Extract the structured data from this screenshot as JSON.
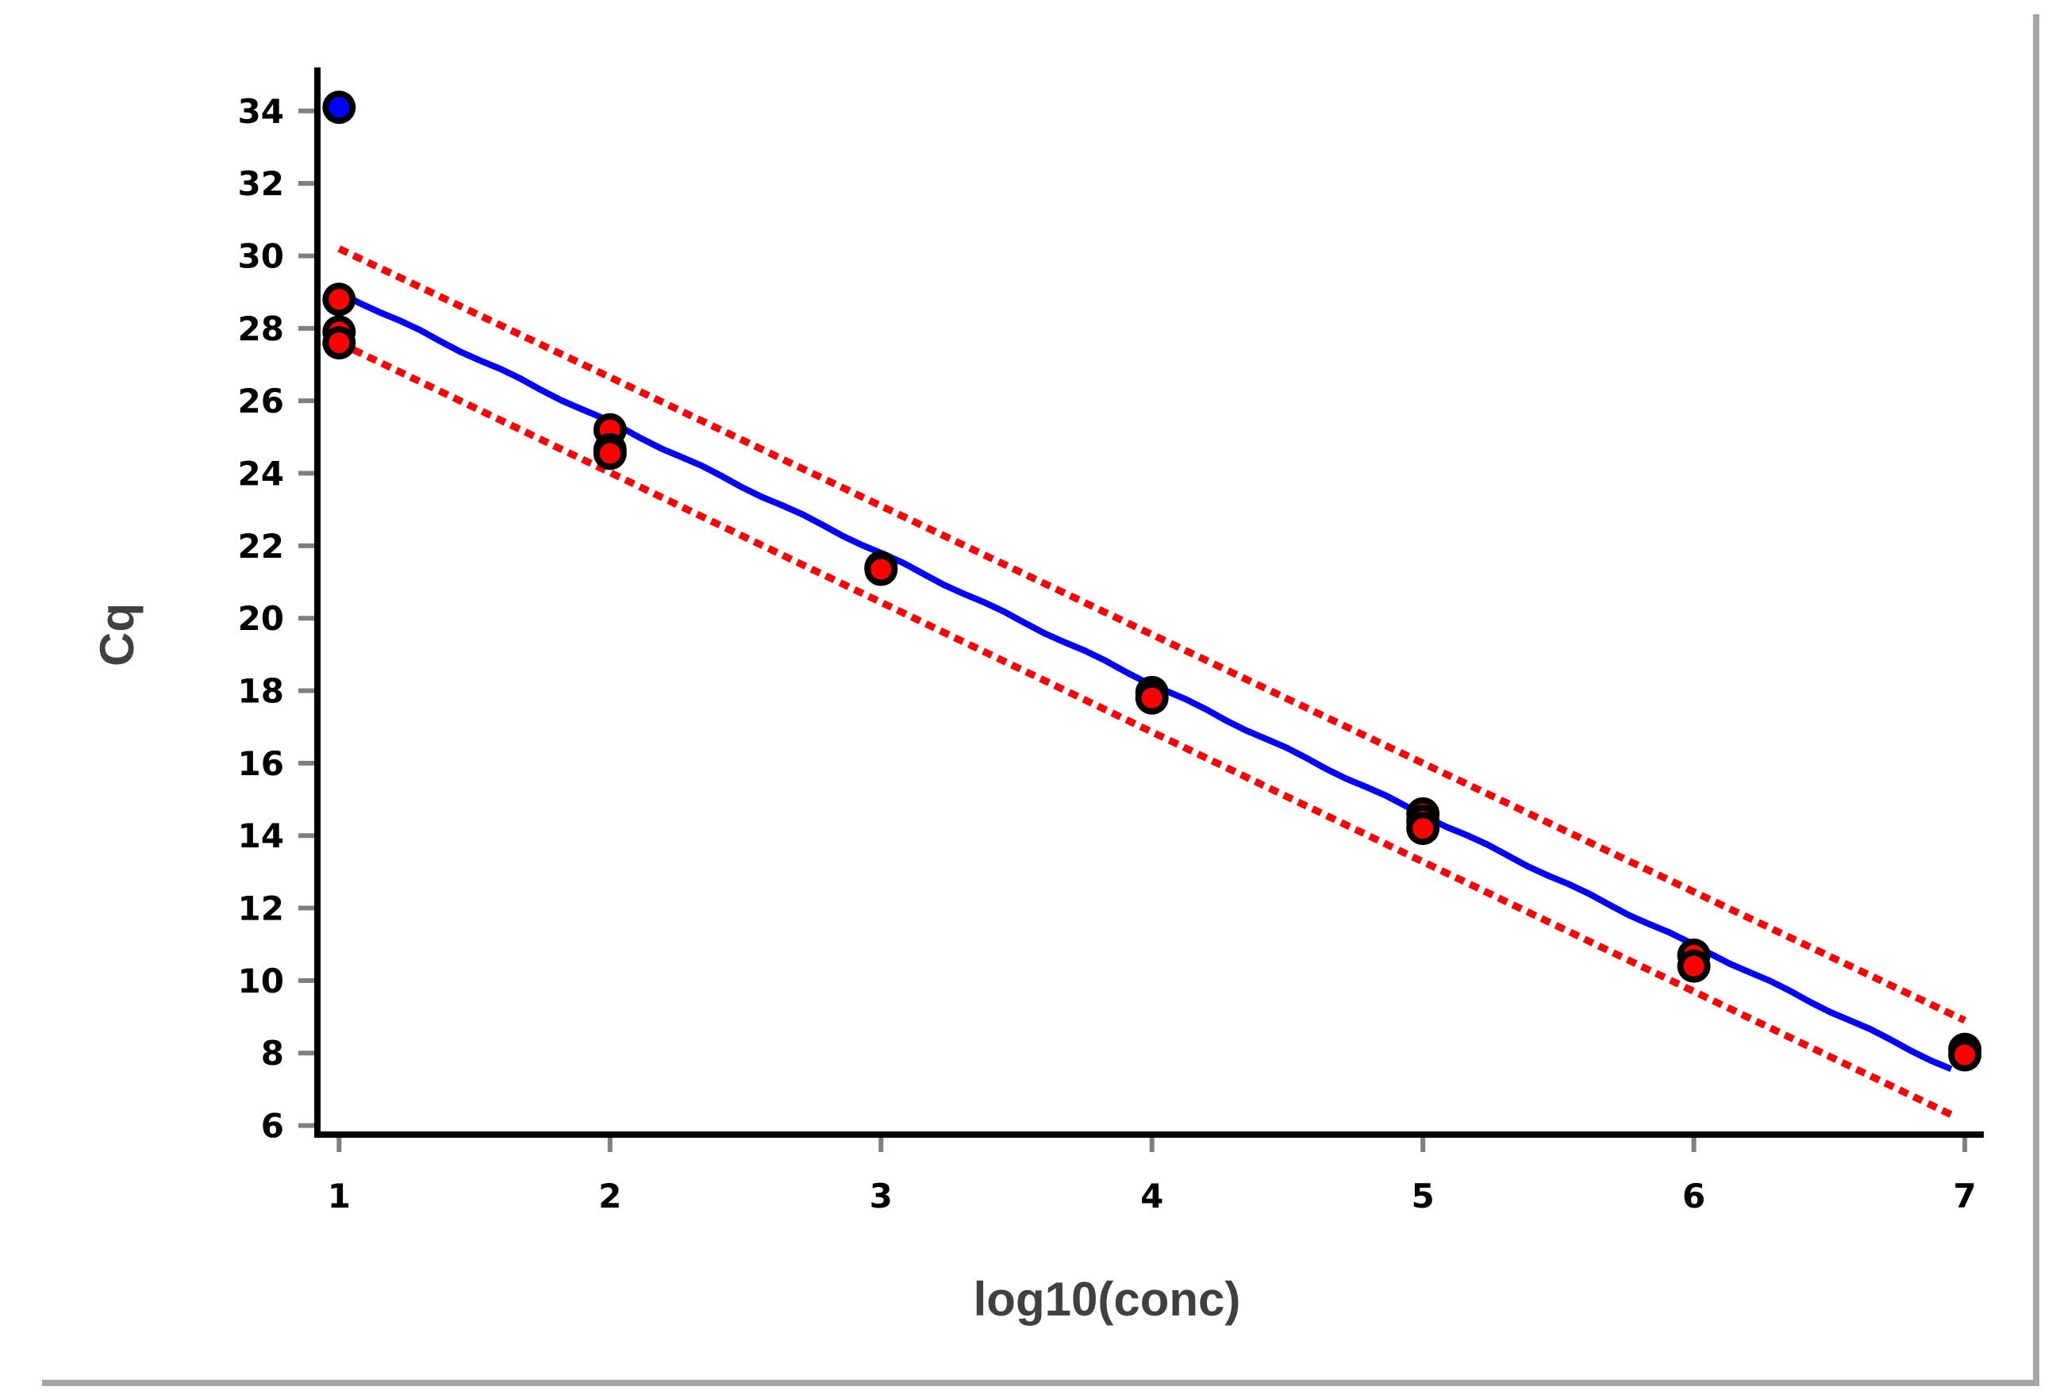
{
  "chart_data": {
    "type": "scatter",
    "xlabel": "log10(conc)",
    "ylabel": "Cq",
    "xlim": [
      0.92,
      7.07
    ],
    "ylim": [
      5.75,
      35.2
    ],
    "x_ticks": [
      1,
      2,
      3,
      4,
      5,
      6,
      7
    ],
    "y_ticks": [
      6,
      8,
      10,
      12,
      14,
      16,
      18,
      20,
      22,
      24,
      26,
      28,
      30,
      32,
      34
    ],
    "grid": false,
    "legend": "none",
    "colors": {
      "points": "#ff0000",
      "outlier": "#0000ff",
      "point_outline": "#000000",
      "fit_line": "#0000ff",
      "confidence_band": "#ff0000",
      "axis": "#000000",
      "frame_shadow": "#a6a6a6"
    },
    "points": [
      {
        "x": 1,
        "y": 28.8
      },
      {
        "x": 1,
        "y": 27.9
      },
      {
        "x": 1,
        "y": 27.6
      },
      {
        "x": 2,
        "y": 25.2
      },
      {
        "x": 2,
        "y": 24.65
      },
      {
        "x": 2,
        "y": 24.55
      },
      {
        "x": 3,
        "y": 21.4
      },
      {
        "x": 3,
        "y": 21.35
      },
      {
        "x": 4,
        "y": 17.95
      },
      {
        "x": 4,
        "y": 17.8
      },
      {
        "x": 5,
        "y": 14.6
      },
      {
        "x": 5,
        "y": 14.4
      },
      {
        "x": 5,
        "y": 14.2
      },
      {
        "x": 6,
        "y": 10.7
      },
      {
        "x": 6,
        "y": 10.4
      },
      {
        "x": 7,
        "y": 8.1
      },
      {
        "x": 7,
        "y": 7.95
      }
    ],
    "outliers": [
      {
        "x": 1,
        "y": 34.1
      }
    ],
    "fit": {
      "x": [
        1,
        6.95
      ],
      "y": [
        29.0,
        7.55
      ]
    },
    "confidence_upper": {
      "x": [
        1,
        7
      ],
      "y": [
        30.2,
        8.9
      ]
    },
    "confidence_lower": {
      "x": [
        1,
        6.95
      ],
      "y": [
        27.6,
        6.3
      ]
    }
  }
}
